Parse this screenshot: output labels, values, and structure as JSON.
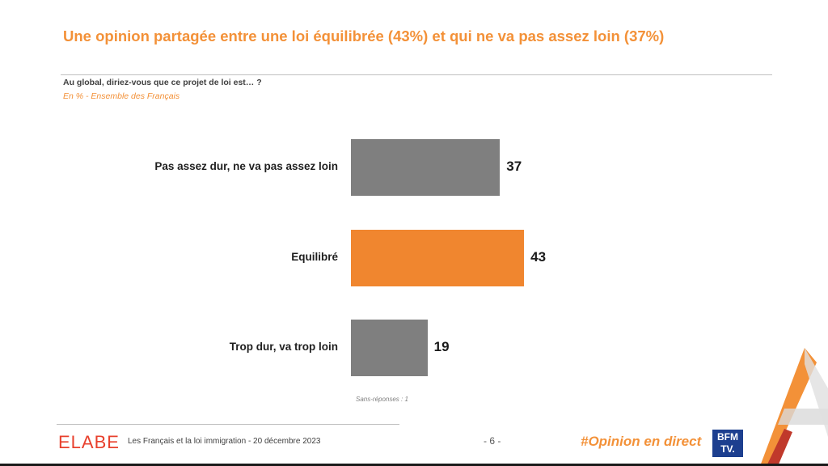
{
  "title": "Une opinion partagée entre une loi équilibrée (43%) et qui ne va pas assez loin (37%)",
  "question": "Au global, diriez-vous que ce projet de loi est… ?",
  "base": "En % - Ensemble des Français",
  "chart_data": {
    "type": "bar",
    "orientation": "horizontal",
    "categories": [
      "Pas assez dur, ne va pas assez loin",
      "Equilibré",
      "Trop dur, va trop loin"
    ],
    "values": [
      37,
      43,
      19
    ],
    "value_labels": [
      "37",
      "43",
      "19"
    ],
    "colors": [
      "#7F7F7F",
      "#F0862F",
      "#7F7F7F"
    ],
    "title": "",
    "xlabel": "",
    "ylabel": "",
    "grid": false
  },
  "note": "Sans-réponses : 1",
  "footer": {
    "logo": "ELABE",
    "text": "Les Français et la loi immigration - 20 décembre 2023",
    "page": "- 6 -",
    "hashtag": "#Opinion en direct",
    "partner_logo": "BFM TV."
  }
}
